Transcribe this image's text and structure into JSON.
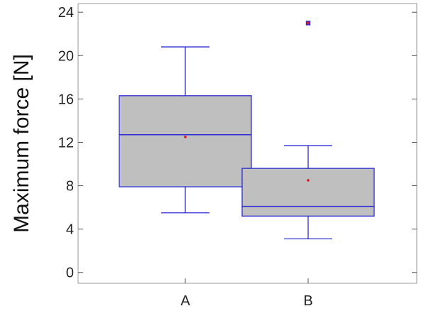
{
  "chart_data": {
    "type": "box",
    "title": "",
    "xlabel": "",
    "ylabel": "Maximum force [N]",
    "ylim": [
      -1,
      24.8
    ],
    "yticks": [
      0,
      4,
      8,
      12,
      16,
      20,
      24
    ],
    "ytick_labels": [
      "0",
      "4",
      "8",
      "12",
      "16",
      "20",
      "24"
    ],
    "categories": [
      "A",
      "B"
    ],
    "grid": false,
    "legend": "none",
    "colors": {
      "box_fill": "#bfbfbf",
      "box_stroke": "#2b2bd6",
      "mean_marker": "#e0142a",
      "outlier": "#2b2bd6"
    },
    "boxes": [
      {
        "category": "A",
        "whisker_low": 5.5,
        "q1": 7.9,
        "median": 12.7,
        "q3": 16.3,
        "whisker_high": 20.8,
        "mean": 12.5,
        "outliers": []
      },
      {
        "category": "B",
        "whisker_low": 3.1,
        "q1": 5.2,
        "median": 6.1,
        "q3": 9.6,
        "whisker_high": 11.7,
        "mean": 8.5,
        "outliers": [
          23.0
        ]
      }
    ]
  }
}
